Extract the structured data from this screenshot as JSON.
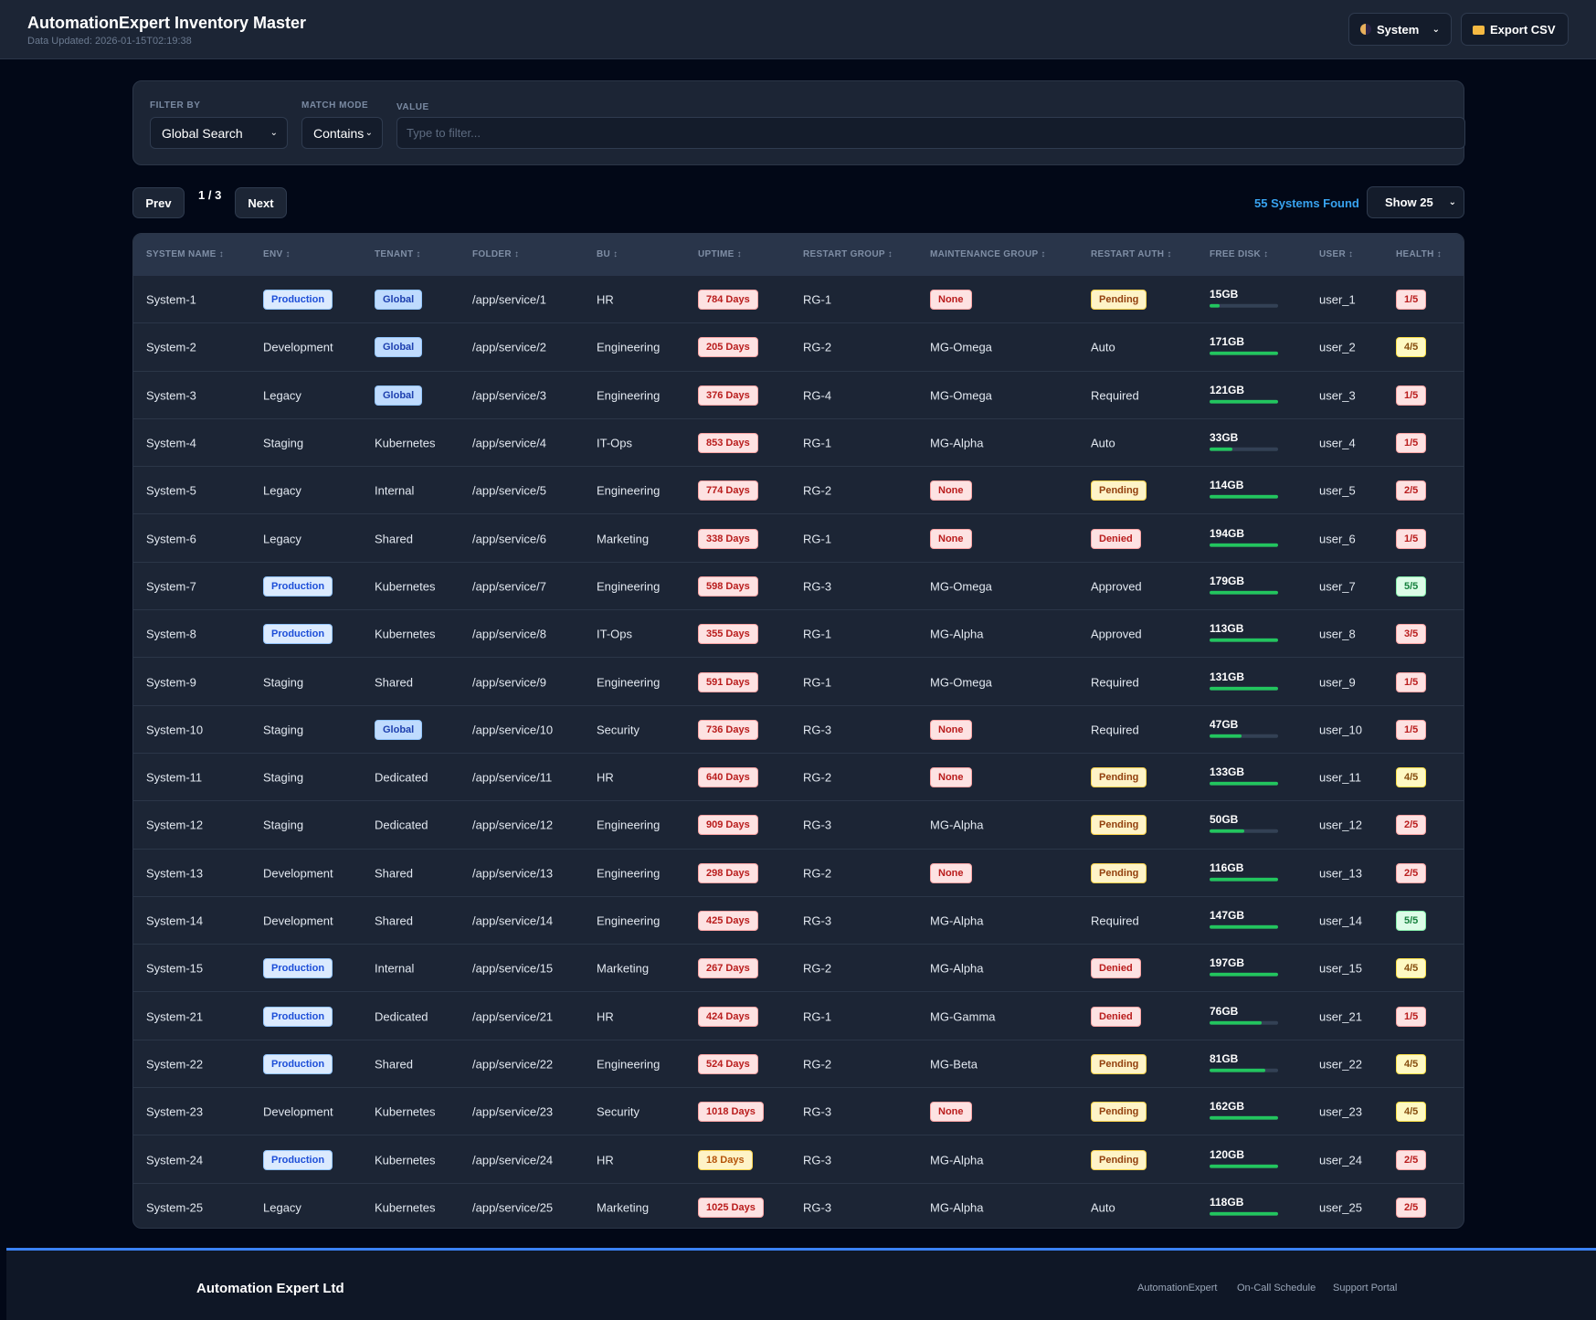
{
  "header": {
    "title": "AutomationExpert Inventory Master",
    "updated": "Data Updated: 2026-01-15T02:19:38",
    "theme_label": "System",
    "export_label": "Export CSV"
  },
  "filter": {
    "filter_by_label": "FILTER BY",
    "filter_by_value": "Global Search",
    "match_mode_label": "MATCH MODE",
    "match_mode_value": "Contains",
    "value_label": "VALUE",
    "value_placeholder": "Type to filter..."
  },
  "pager": {
    "prev_label": "Prev",
    "page_indicator": "1 / 3",
    "next_label": "Next",
    "found_label": "55 Systems Found",
    "show_label": "Show 25"
  },
  "table": {
    "columns": [
      "SYSTEM NAME ↕",
      "ENV ↕",
      "TENANT ↕",
      "FOLDER ↕",
      "BU ↕",
      "UPTIME ↕",
      "RESTART GROUP ↕",
      "MAINTENANCE GROUP ↕",
      "RESTART AUTH ↕",
      "FREE DISK ↕",
      "USER ↕",
      "HEALTH ↕"
    ],
    "rows": [
      {
        "name": "System-1",
        "env": "Production",
        "tenant": "Global",
        "folder": "/app/service/1",
        "bu": "HR",
        "uptime": "784 Days",
        "rg": "RG-1",
        "mg": "None",
        "auth": "Pending",
        "disk": "15GB",
        "disk_pct": 0.15,
        "user": "user_1",
        "health": "1/5"
      },
      {
        "name": "System-2",
        "env": "Development",
        "tenant": "Global",
        "folder": "/app/service/2",
        "bu": "Engineering",
        "uptime": "205 Days",
        "rg": "RG-2",
        "mg": "MG-Omega",
        "auth": "Auto",
        "disk": "171GB",
        "disk_pct": 1,
        "user": "user_2",
        "health": "4/5"
      },
      {
        "name": "System-3",
        "env": "Legacy",
        "tenant": "Global",
        "folder": "/app/service/3",
        "bu": "Engineering",
        "uptime": "376 Days",
        "rg": "RG-4",
        "mg": "MG-Omega",
        "auth": "Required",
        "disk": "121GB",
        "disk_pct": 1,
        "user": "user_3",
        "health": "1/5"
      },
      {
        "name": "System-4",
        "env": "Staging",
        "tenant": "Kubernetes",
        "folder": "/app/service/4",
        "bu": "IT-Ops",
        "uptime": "853 Days",
        "rg": "RG-1",
        "mg": "MG-Alpha",
        "auth": "Auto",
        "disk": "33GB",
        "disk_pct": 0.33,
        "user": "user_4",
        "health": "1/5"
      },
      {
        "name": "System-5",
        "env": "Legacy",
        "tenant": "Internal",
        "folder": "/app/service/5",
        "bu": "Engineering",
        "uptime": "774 Days",
        "rg": "RG-2",
        "mg": "None",
        "auth": "Pending",
        "disk": "114GB",
        "disk_pct": 1,
        "user": "user_5",
        "health": "2/5"
      },
      {
        "name": "System-6",
        "env": "Legacy",
        "tenant": "Shared",
        "folder": "/app/service/6",
        "bu": "Marketing",
        "uptime": "338 Days",
        "rg": "RG-1",
        "mg": "None",
        "auth": "Denied",
        "disk": "194GB",
        "disk_pct": 1,
        "user": "user_6",
        "health": "1/5"
      },
      {
        "name": "System-7",
        "env": "Production",
        "tenant": "Kubernetes",
        "folder": "/app/service/7",
        "bu": "Engineering",
        "uptime": "598 Days",
        "rg": "RG-3",
        "mg": "MG-Omega",
        "auth": "Approved",
        "disk": "179GB",
        "disk_pct": 1,
        "user": "user_7",
        "health": "5/5"
      },
      {
        "name": "System-8",
        "env": "Production",
        "tenant": "Kubernetes",
        "folder": "/app/service/8",
        "bu": "IT-Ops",
        "uptime": "355 Days",
        "rg": "RG-1",
        "mg": "MG-Alpha",
        "auth": "Approved",
        "disk": "113GB",
        "disk_pct": 1,
        "user": "user_8",
        "health": "3/5"
      },
      {
        "name": "System-9",
        "env": "Staging",
        "tenant": "Shared",
        "folder": "/app/service/9",
        "bu": "Engineering",
        "uptime": "591 Days",
        "rg": "RG-1",
        "mg": "MG-Omega",
        "auth": "Required",
        "disk": "131GB",
        "disk_pct": 1,
        "user": "user_9",
        "health": "1/5"
      },
      {
        "name": "System-10",
        "env": "Staging",
        "tenant": "Global",
        "folder": "/app/service/10",
        "bu": "Security",
        "uptime": "736 Days",
        "rg": "RG-3",
        "mg": "None",
        "auth": "Required",
        "disk": "47GB",
        "disk_pct": 0.47,
        "user": "user_10",
        "health": "1/5"
      },
      {
        "name": "System-11",
        "env": "Staging",
        "tenant": "Dedicated",
        "folder": "/app/service/11",
        "bu": "HR",
        "uptime": "640 Days",
        "rg": "RG-2",
        "mg": "None",
        "auth": "Pending",
        "disk": "133GB",
        "disk_pct": 1,
        "user": "user_11",
        "health": "4/5"
      },
      {
        "name": "System-12",
        "env": "Staging",
        "tenant": "Dedicated",
        "folder": "/app/service/12",
        "bu": "Engineering",
        "uptime": "909 Days",
        "rg": "RG-3",
        "mg": "MG-Alpha",
        "auth": "Pending",
        "disk": "50GB",
        "disk_pct": 0.5,
        "user": "user_12",
        "health": "2/5"
      },
      {
        "name": "System-13",
        "env": "Development",
        "tenant": "Shared",
        "folder": "/app/service/13",
        "bu": "Engineering",
        "uptime": "298 Days",
        "rg": "RG-2",
        "mg": "None",
        "auth": "Pending",
        "disk": "116GB",
        "disk_pct": 1,
        "user": "user_13",
        "health": "2/5"
      },
      {
        "name": "System-14",
        "env": "Development",
        "tenant": "Shared",
        "folder": "/app/service/14",
        "bu": "Engineering",
        "uptime": "425 Days",
        "rg": "RG-3",
        "mg": "MG-Alpha",
        "auth": "Required",
        "disk": "147GB",
        "disk_pct": 1,
        "user": "user_14",
        "health": "5/5"
      },
      {
        "name": "System-15",
        "env": "Production",
        "tenant": "Internal",
        "folder": "/app/service/15",
        "bu": "Marketing",
        "uptime": "267 Days",
        "rg": "RG-2",
        "mg": "MG-Alpha",
        "auth": "Denied",
        "disk": "197GB",
        "disk_pct": 1,
        "user": "user_15",
        "health": "4/5"
      },
      {
        "name": "System-21",
        "env": "Production",
        "tenant": "Dedicated",
        "folder": "/app/service/21",
        "bu": "HR",
        "uptime": "424 Days",
        "rg": "RG-1",
        "mg": "MG-Gamma",
        "auth": "Denied",
        "disk": "76GB",
        "disk_pct": 0.76,
        "user": "user_21",
        "health": "1/5"
      },
      {
        "name": "System-22",
        "env": "Production",
        "tenant": "Shared",
        "folder": "/app/service/22",
        "bu": "Engineering",
        "uptime": "524 Days",
        "rg": "RG-2",
        "mg": "MG-Beta",
        "auth": "Pending",
        "disk": "81GB",
        "disk_pct": 0.81,
        "user": "user_22",
        "health": "4/5"
      },
      {
        "name": "System-23",
        "env": "Development",
        "tenant": "Kubernetes",
        "folder": "/app/service/23",
        "bu": "Security",
        "uptime": "1018 Days",
        "rg": "RG-3",
        "mg": "None",
        "auth": "Pending",
        "disk": "162GB",
        "disk_pct": 1,
        "user": "user_23",
        "health": "4/5"
      },
      {
        "name": "System-24",
        "env": "Production",
        "tenant": "Kubernetes",
        "folder": "/app/service/24",
        "bu": "HR",
        "uptime": "18 Days",
        "rg": "RG-3",
        "mg": "MG-Alpha",
        "auth": "Pending",
        "disk": "120GB",
        "disk_pct": 1,
        "user": "user_24",
        "health": "2/5"
      },
      {
        "name": "System-25",
        "env": "Legacy",
        "tenant": "Kubernetes",
        "folder": "/app/service/25",
        "bu": "Marketing",
        "uptime": "1025 Days",
        "rg": "RG-3",
        "mg": "MG-Alpha",
        "auth": "Auto",
        "disk": "118GB",
        "disk_pct": 1,
        "user": "user_25",
        "health": "2/5"
      }
    ]
  },
  "footer": {
    "company": "Automation Expert Ltd",
    "links": [
      "AutomationExpert",
      "On-Call Schedule",
      "Support Portal"
    ]
  },
  "colors": {
    "background": "#020817",
    "panel": "#1c2535",
    "accent": "#3b82f6",
    "found_text": "#38a3f0",
    "disk_bar": "#22c55e"
  }
}
